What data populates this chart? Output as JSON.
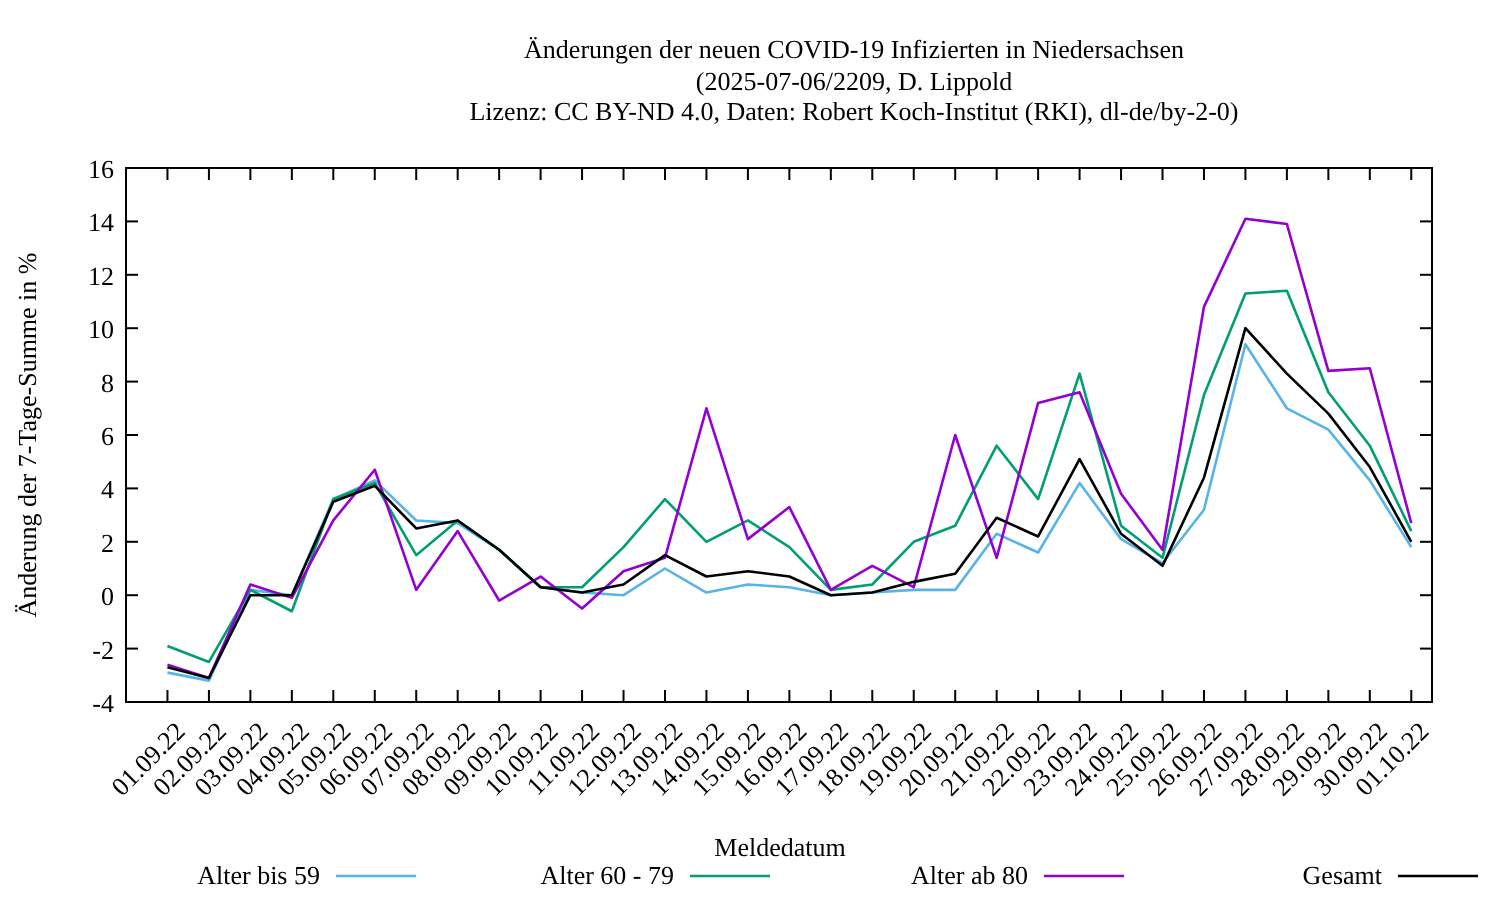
{
  "chart_data": {
    "type": "line",
    "title": "Änderungen der neuen COVID-19 Infizierten in Niedersachsen",
    "subtitle": "(2025-07-06/2209, D. Lippold\nLizenz: CC BY-ND 4.0, Daten: Robert Koch-Institut (RKI), dl-de/by-2-0)",
    "xlabel": "Meldedatum",
    "ylabel": "Änderung der 7-Tage-Summe in %",
    "categories": [
      "01.09.22",
      "02.09.22",
      "03.09.22",
      "04.09.22",
      "05.09.22",
      "06.09.22",
      "07.09.22",
      "08.09.22",
      "09.09.22",
      "10.09.22",
      "11.09.22",
      "12.09.22",
      "13.09.22",
      "14.09.22",
      "15.09.22",
      "16.09.22",
      "17.09.22",
      "18.09.22",
      "19.09.22",
      "20.09.22",
      "21.09.22",
      "22.09.22",
      "23.09.22",
      "24.09.22",
      "25.09.22",
      "26.09.22",
      "27.09.22",
      "28.09.22",
      "29.09.22",
      "30.09.22",
      "01.10.22"
    ],
    "series": [
      {
        "name": "Alter bis 59",
        "color": "#56b4e9",
        "values": [
          -2.9,
          -3.2,
          0.2,
          0.0,
          3.6,
          4.3,
          2.8,
          2.7,
          1.7,
          0.3,
          0.1,
          0.0,
          1.0,
          0.1,
          0.4,
          0.3,
          0.0,
          0.1,
          0.2,
          0.2,
          2.3,
          1.6,
          4.2,
          2.1,
          1.2,
          3.2,
          9.4,
          7.0,
          6.2,
          4.3,
          1.8
        ]
      },
      {
        "name": "Alter 60 - 79",
        "color": "#009e73",
        "values": [
          -1.9,
          -2.5,
          0.2,
          -0.6,
          3.6,
          4.2,
          1.5,
          2.8,
          1.7,
          0.3,
          0.3,
          1.8,
          3.6,
          2.0,
          2.8,
          1.8,
          0.2,
          0.4,
          2.0,
          2.6,
          5.6,
          3.6,
          8.3,
          2.6,
          1.4,
          7.5,
          11.3,
          11.4,
          7.6,
          5.6,
          2.4
        ]
      },
      {
        "name": "Alter ab 80",
        "color": "#9400d3",
        "values": [
          -2.6,
          -3.1,
          0.4,
          -0.1,
          2.8,
          4.7,
          0.2,
          2.4,
          -0.2,
          0.7,
          -0.5,
          0.9,
          1.4,
          7.0,
          2.1,
          3.3,
          0.2,
          1.1,
          0.3,
          6.0,
          1.4,
          7.2,
          7.6,
          3.8,
          1.7,
          10.8,
          14.1,
          13.9,
          8.4,
          8.5,
          2.7
        ]
      },
      {
        "name": "Gesamt",
        "color": "#000000",
        "values": [
          -2.7,
          -3.1,
          0.0,
          0.0,
          3.5,
          4.1,
          2.5,
          2.8,
          1.7,
          0.3,
          0.1,
          0.4,
          1.5,
          0.7,
          0.9,
          0.7,
          0.0,
          0.1,
          0.5,
          0.8,
          2.9,
          2.2,
          5.1,
          2.3,
          1.1,
          4.4,
          10.0,
          8.3,
          6.8,
          4.8,
          2.0
        ]
      }
    ],
    "ylim": [
      -4,
      16
    ],
    "yticks": [
      -4,
      -2,
      0,
      2,
      4,
      6,
      8,
      10,
      12,
      14,
      16
    ],
    "grid": false,
    "legend": "bottom",
    "marker": "none",
    "line_style": "solid"
  }
}
